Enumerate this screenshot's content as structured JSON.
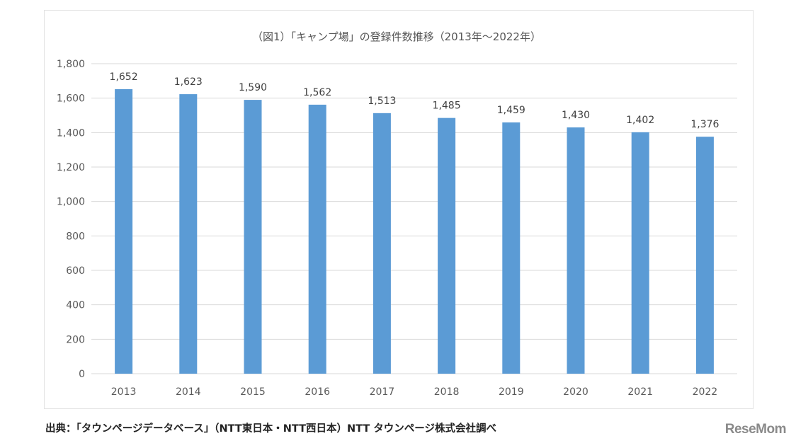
{
  "chart_data": {
    "type": "bar",
    "title": "（図1）「キャンプ場」の登録件数推移（2013年～2022年）",
    "categories": [
      "2013",
      "2014",
      "2015",
      "2016",
      "2017",
      "2018",
      "2019",
      "2020",
      "2021",
      "2022"
    ],
    "values": [
      1652,
      1623,
      1590,
      1562,
      1513,
      1485,
      1459,
      1430,
      1402,
      1376
    ],
    "value_labels": [
      "1,652",
      "1,623",
      "1,590",
      "1,562",
      "1,513",
      "1,485",
      "1,459",
      "1,430",
      "1,402",
      "1,376"
    ],
    "ylim": [
      0,
      1800
    ],
    "yticks": [
      0,
      200,
      400,
      600,
      800,
      1000,
      1200,
      1400,
      1600,
      1800
    ],
    "ytick_labels": [
      "0",
      "200",
      "400",
      "600",
      "800",
      "1,000",
      "1,200",
      "1,400",
      "1,600",
      "1,800"
    ],
    "xlabel": "",
    "ylabel": "",
    "grid": true,
    "bar_color": "#5b9bd5",
    "grid_color": "#d9d9d9"
  },
  "footer": {
    "source": "出典：「タウンページデータベース」（NTT東日本・NTT西日本）NTT タウンページ株式会社調べ"
  },
  "logo": {
    "text": "ReseMom"
  }
}
